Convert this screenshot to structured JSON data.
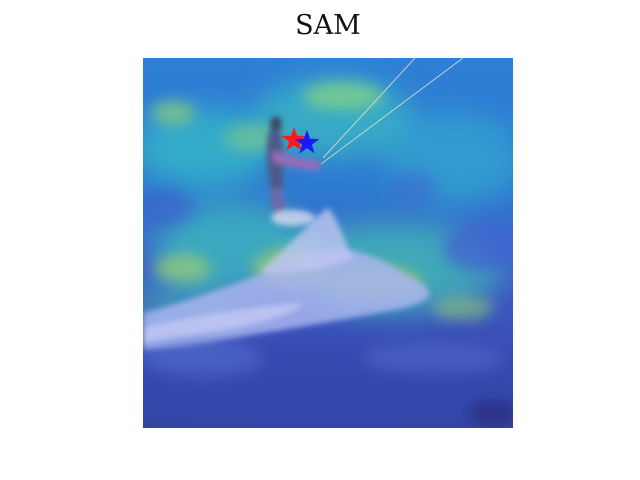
{
  "figure": {
    "title": "SAM"
  },
  "heatmap": {
    "colormap": "jet-overlay",
    "markers": [
      {
        "name": "red-star",
        "color": "#ff1a1a"
      },
      {
        "name": "blue-star",
        "color": "#1a1aff"
      }
    ]
  }
}
